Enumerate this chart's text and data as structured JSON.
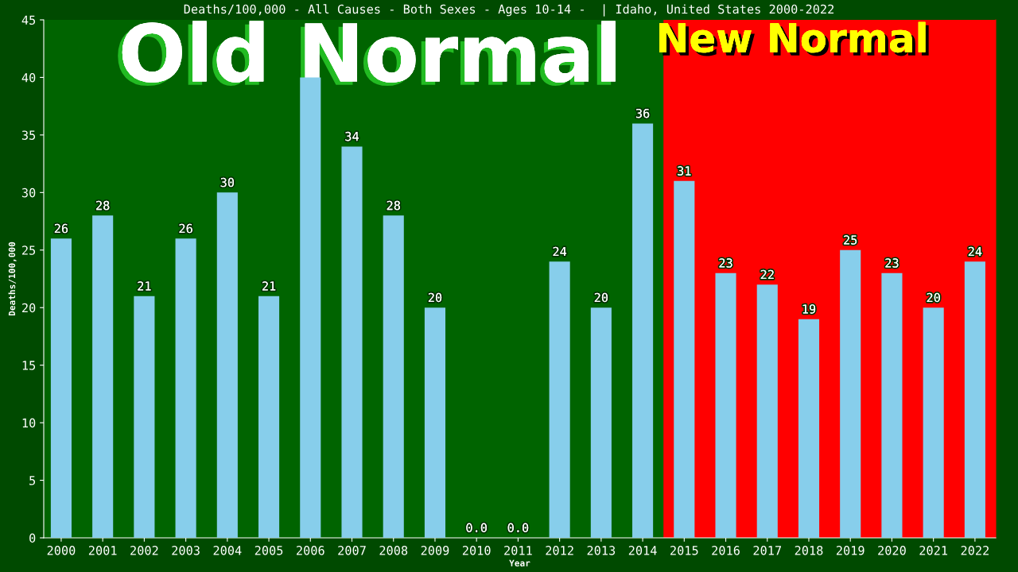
{
  "chart_data": {
    "type": "bar",
    "title": "Deaths/100,000 - All Causes - Both Sexes - Ages 10-14 -  | Idaho, United States 2000-2022",
    "xlabel": "Year",
    "ylabel": "Deaths/100,000",
    "categories": [
      "2000",
      "2001",
      "2002",
      "2003",
      "2004",
      "2005",
      "2006",
      "2007",
      "2008",
      "2009",
      "2010",
      "2011",
      "2012",
      "2013",
      "2014",
      "2015",
      "2016",
      "2017",
      "2018",
      "2019",
      "2020",
      "2021",
      "2022"
    ],
    "values": [
      26,
      28,
      21,
      26,
      30,
      21,
      40,
      34,
      28,
      20,
      0,
      0,
      24,
      20,
      36,
      31,
      23,
      22,
      19,
      25,
      23,
      20,
      24
    ],
    "value_labels": [
      "26",
      "28",
      "21",
      "26",
      "30",
      "21",
      null,
      "34",
      "28",
      "20",
      "0.0",
      "0.0",
      "24",
      "20",
      "36",
      "31",
      "23",
      "22",
      "19",
      "25",
      "23",
      "20",
      "24"
    ],
    "color": "#87ceeb",
    "ylim": [
      0,
      45
    ],
    "yticks": [
      0,
      5,
      10,
      15,
      20,
      25,
      30,
      35,
      40,
      45
    ],
    "grid": false,
    "legend": false,
    "bands": [
      {
        "axis": "x",
        "from": "2000",
        "to": "2014",
        "label": "Old Normal",
        "color": "#006400"
      },
      {
        "axis": "x",
        "from": "2015",
        "to": "2022",
        "label": "New Normal",
        "color": "#ff0000"
      }
    ]
  }
}
